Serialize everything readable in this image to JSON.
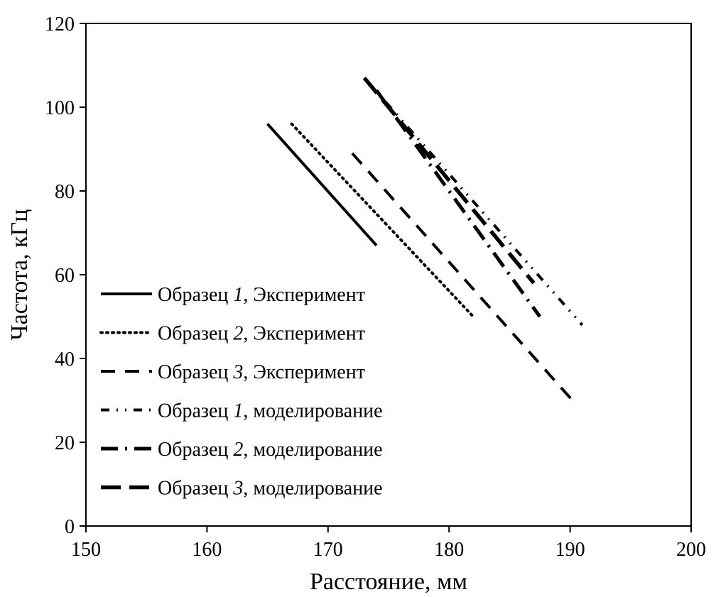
{
  "chart_data": {
    "type": "line",
    "xlabel": "Расстояние, мм",
    "ylabel": "Частота, кГц",
    "xlim": [
      150,
      200
    ],
    "ylim": [
      0,
      120
    ],
    "xticks": [
      150,
      160,
      170,
      180,
      190,
      200
    ],
    "yticks": [
      0,
      20,
      40,
      60,
      80,
      100,
      120
    ],
    "grid": false,
    "legend_position": "bottom-left",
    "series": [
      {
        "name": "Образец 1, Эксперимент",
        "name_prefix": "Образец ",
        "name_num": "1",
        "name_suffix": ", Эксперимент",
        "style": "solid",
        "x": [
          165,
          174
        ],
        "y": [
          96,
          67
        ]
      },
      {
        "name": "Образец 2, Эксперимент",
        "name_prefix": "Образец ",
        "name_num": "2",
        "name_suffix": ", Эксперимент",
        "style": "dotted",
        "x": [
          167,
          182
        ],
        "y": [
          96,
          50
        ]
      },
      {
        "name": "Образец 3, Эксперимент",
        "name_prefix": "Образец ",
        "name_num": "3",
        "name_suffix": ", Эксперимент",
        "style": "dashed",
        "x": [
          172,
          190.5
        ],
        "y": [
          89,
          29
        ]
      },
      {
        "name": "Образец 1, моделирование",
        "name_prefix": "Образец ",
        "name_num": "1",
        "name_suffix": ", моделирование",
        "style": "dashdotdot",
        "x": [
          173,
          191
        ],
        "y": [
          107,
          48
        ]
      },
      {
        "name": "Образец 2, моделирование",
        "name_prefix": "Образец ",
        "name_num": "2",
        "name_suffix": ", моделирование",
        "style": "longdashdot",
        "x": [
          174,
          187.5
        ],
        "y": [
          104,
          50
        ]
      },
      {
        "name": "Образец 3, моделирование",
        "name_prefix": "Образец ",
        "name_num": "3",
        "name_suffix": ", моделирование",
        "style": "longdash",
        "x": [
          173,
          187
        ],
        "y": [
          107,
          58
        ]
      }
    ]
  }
}
